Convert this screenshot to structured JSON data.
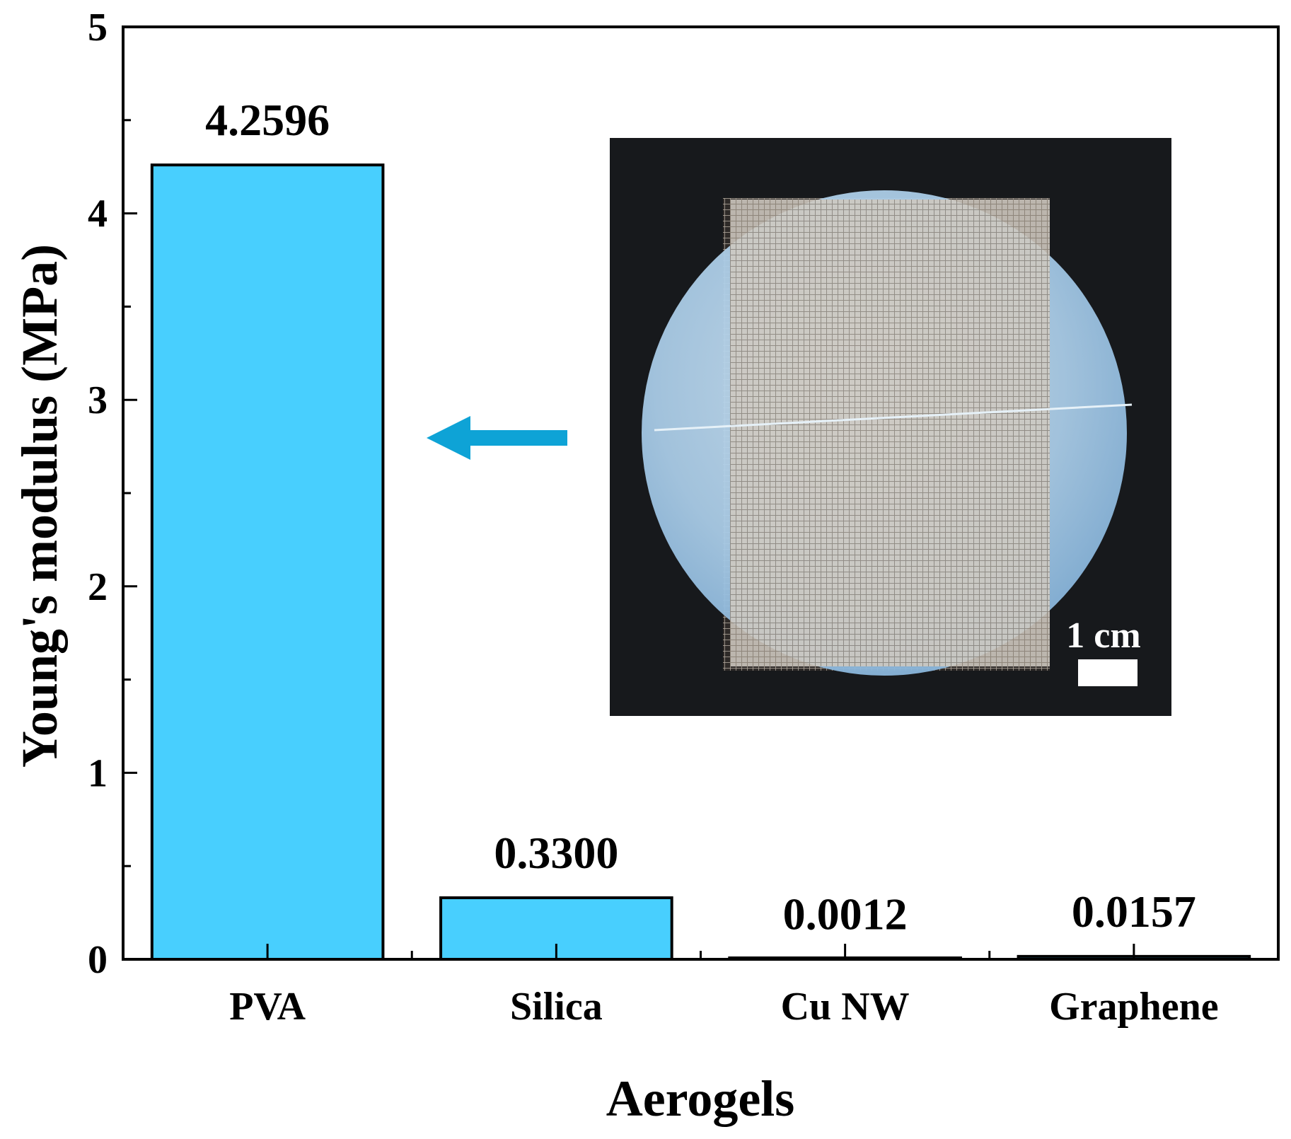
{
  "chart_data": {
    "type": "bar",
    "xlabel": "Aerogels",
    "ylabel": "Young's modulus (MPa)",
    "ylim": [
      0,
      5
    ],
    "yticks": [
      0,
      1,
      2,
      3,
      4,
      5
    ],
    "categories": [
      "PVA",
      "Silica",
      "Cu NW",
      "Graphene"
    ],
    "values": [
      4.2596,
      0.33,
      0.0012,
      0.0157
    ],
    "value_labels": [
      "4.2596",
      "0.3300",
      "0.0012",
      "0.0157"
    ],
    "bar_color": "#48CFFE",
    "inset": {
      "description": "photo of PVA aerogel disc on mesh",
      "scale_bar_label": "1 cm",
      "arrow_color": "#0EA3D6",
      "arrow_points_to": "PVA"
    }
  }
}
